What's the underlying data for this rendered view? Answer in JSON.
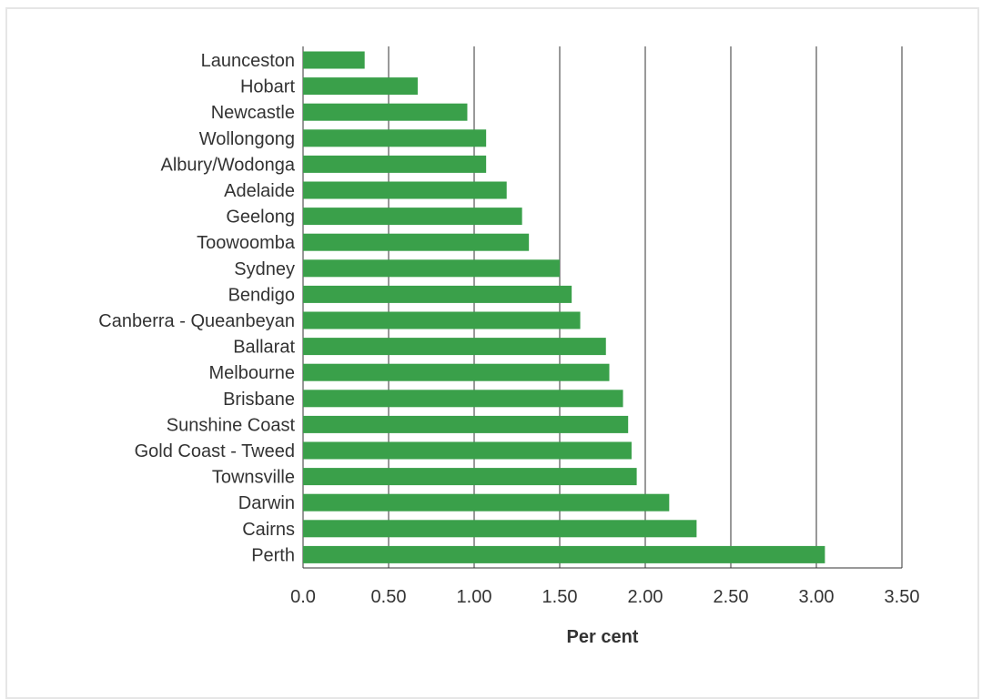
{
  "chart_data": {
    "type": "bar",
    "orientation": "horizontal",
    "categories": [
      "Launceston",
      "Hobart",
      "Newcastle",
      "Wollongong",
      "Albury/Wodonga",
      "Adelaide",
      "Geelong",
      "Toowoomba",
      "Sydney",
      "Bendigo",
      "Canberra - Queanbeyan",
      "Ballarat",
      "Melbourne",
      "Brisbane",
      "Sunshine Coast",
      "Gold Coast - Tweed",
      "Townsville",
      "Darwin",
      "Cairns",
      "Perth"
    ],
    "values": [
      0.36,
      0.67,
      0.96,
      1.07,
      1.07,
      1.19,
      1.28,
      1.32,
      1.5,
      1.57,
      1.62,
      1.77,
      1.79,
      1.87,
      1.9,
      1.92,
      1.95,
      2.14,
      2.3,
      3.05
    ],
    "xlabel": "Per cent",
    "ylabel": "",
    "xlim": [
      0,
      3.5
    ],
    "xticks": [
      "0.0",
      "0.50",
      "1.00",
      "1.50",
      "2.00",
      "2.50",
      "3.00",
      "3.50"
    ],
    "xtick_values": [
      0,
      0.5,
      1,
      1.5,
      2,
      2.5,
      3,
      3.5
    ],
    "grid": "vertical",
    "bar_color": "#3aa04a",
    "grid_color": "#333333"
  }
}
